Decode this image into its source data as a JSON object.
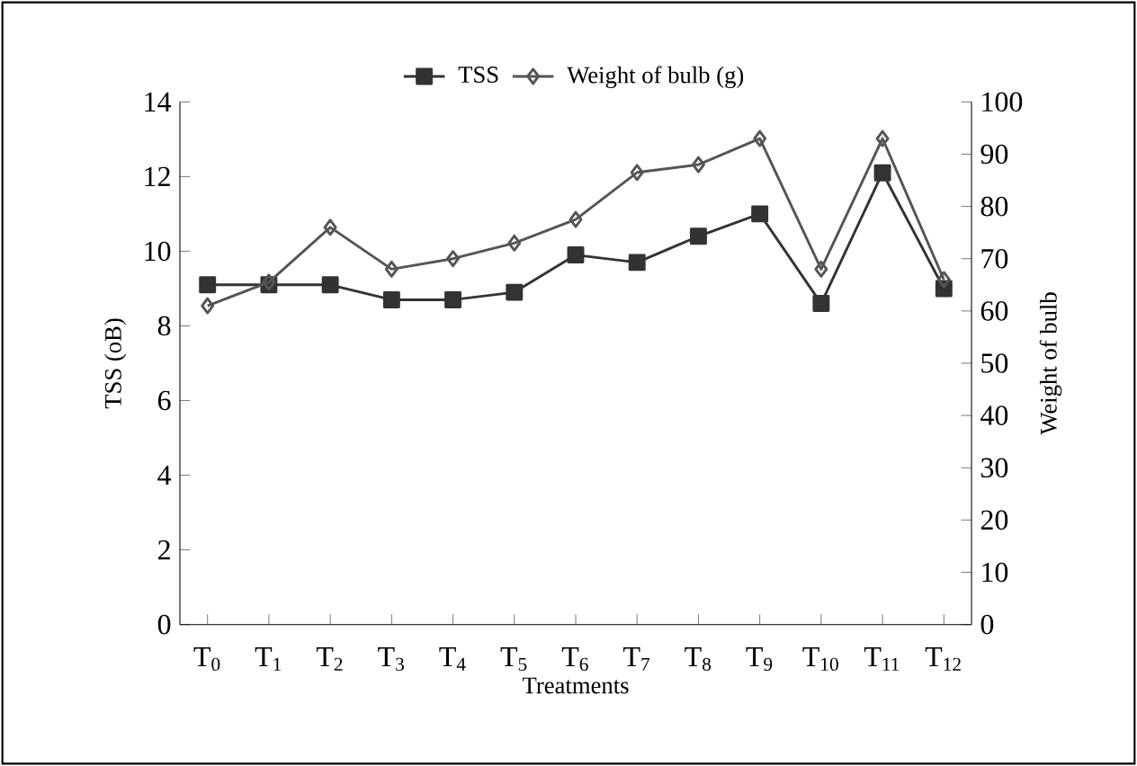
{
  "chart_data": {
    "type": "line",
    "xlabel": "Treatments",
    "ylabel": "TSS (oB)",
    "y2label": "Weight of bulb",
    "categories": [
      "T$_{0}$",
      "T$_{1}$",
      "T$_{2}$",
      "T$_{3}$",
      "T$_{4}$",
      "T$_{5}$",
      "T$_{6}$",
      "T$_{7}$",
      "T$_{8}$",
      "T$_{9}$",
      "T$_{10}$",
      "T$_{11}$",
      "T$_{12}$"
    ],
    "series": [
      {
        "name": "TSS",
        "color": "#333333",
        "marker": "square",
        "values": [
          9.1,
          9.1,
          9.1,
          8.7,
          8.7,
          8.9,
          9.9,
          9.7,
          10.4,
          11.0,
          8.6,
          12.1,
          9.0
        ]
      },
      {
        "name": "Weight of bulb (g)",
        "color": "#555555",
        "marker": "diamond",
        "axis": "y2",
        "values": [
          61,
          65.5,
          76,
          68,
          70,
          73,
          77.5,
          86.5,
          88,
          93,
          68,
          93,
          66
        ]
      }
    ],
    "ylim": [
      0,
      14
    ],
    "yticks": [
      0,
      2,
      4,
      6,
      8,
      10,
      12,
      14
    ],
    "y2lim": [
      0,
      100
    ],
    "y2ticks": [
      0,
      10,
      20,
      30,
      40,
      50,
      60,
      70,
      80,
      90,
      100
    ],
    "legend": "top",
    "grid": false,
    "line_style": "solid"
  }
}
